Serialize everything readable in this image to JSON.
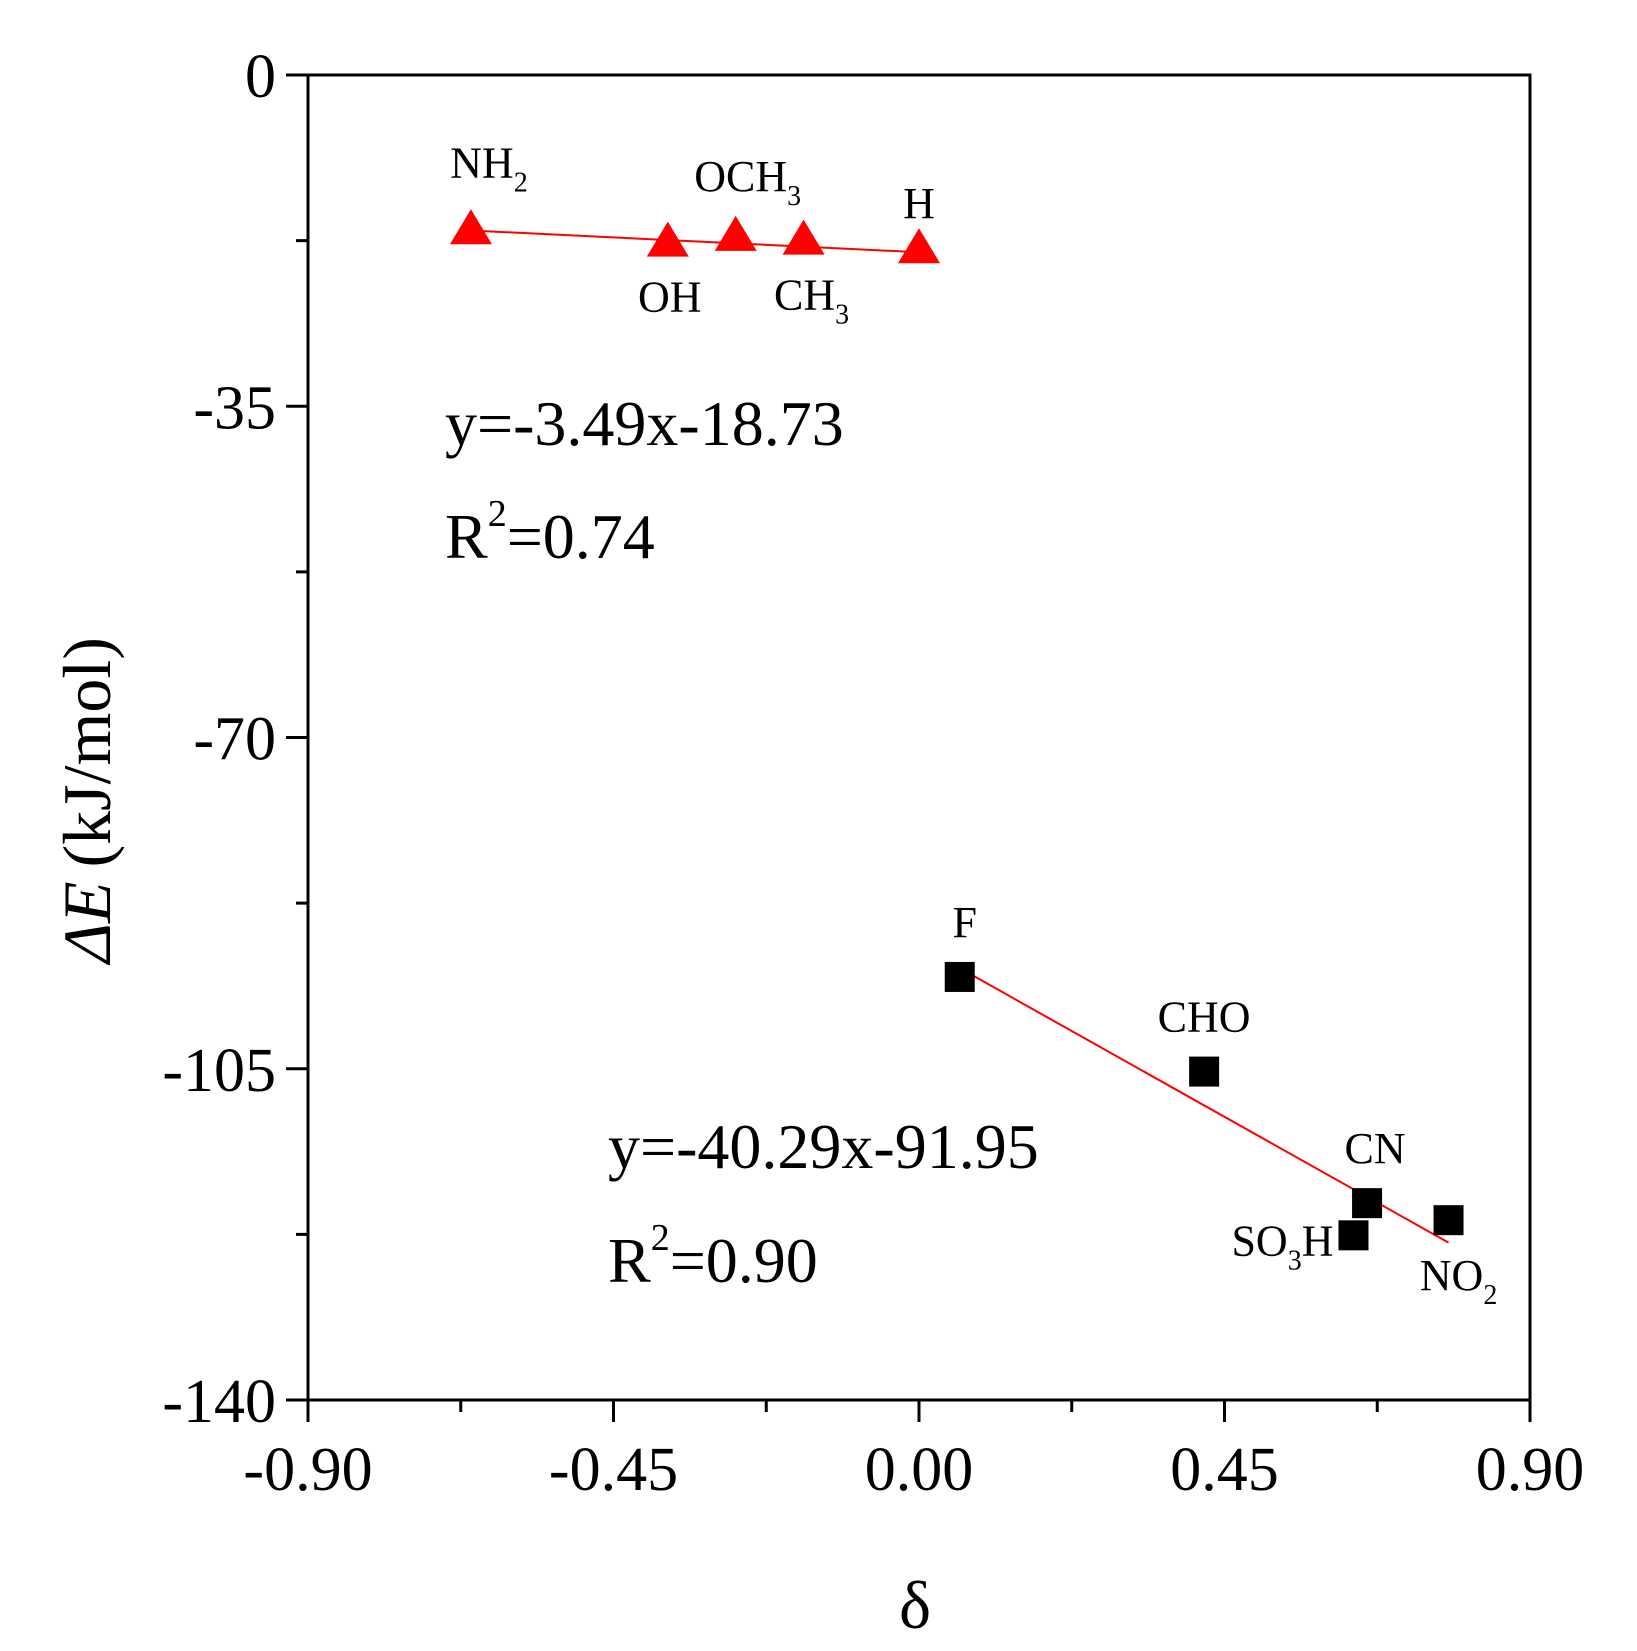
{
  "colors": {
    "triangle_series": "#ff0000",
    "square_series": "#000000",
    "fit_line": "#ff0000",
    "axes": "#000000"
  },
  "chart_data": {
    "type": "scatter",
    "xlabel": "δ",
    "ylabel_symbol": "ΔE",
    "ylabel_unit": "(kJ/mol)",
    "xlim": [
      -0.9,
      0.9
    ],
    "ylim": [
      -140,
      0
    ],
    "x_ticks": [
      -0.9,
      -0.45,
      0.0,
      0.45,
      0.9
    ],
    "x_tick_labels": [
      "-0.90",
      "-0.45",
      "0.00",
      "0.45",
      "0.90"
    ],
    "x_minor_ticks": [
      -0.675,
      -0.225,
      0.225,
      0.675
    ],
    "y_ticks": [
      0,
      -35,
      -70,
      -105,
      -140
    ],
    "y_tick_labels": [
      "0",
      "-35",
      "-70",
      "-105",
      "-140"
    ],
    "y_minor_ticks": [
      -17.5,
      -52.5,
      -87.5,
      -122.5
    ],
    "grid": false,
    "series": [
      {
        "marker": "triangle",
        "color": "#ff0000",
        "points": [
          {
            "label": "NH",
            "sub": "2",
            "x": -0.66,
            "y": -16.3
          },
          {
            "label": "OH",
            "sub": "",
            "x": -0.37,
            "y": -17.6
          },
          {
            "label": "OCH",
            "sub": "3",
            "x": -0.27,
            "y": -17.0
          },
          {
            "label": "CH",
            "sub": "3",
            "x": -0.17,
            "y": -17.4
          },
          {
            "label": "H",
            "sub": "",
            "x": 0.0,
            "y": -18.3
          }
        ],
        "fit": {
          "slope": -3.49,
          "intercept": -18.73,
          "x_range": [
            -0.66,
            0.0
          ]
        },
        "equation": "y=-3.49x-18.73",
        "r2_prefix": "R",
        "r2_sup": "2",
        "r2_value": "=0.74"
      },
      {
        "marker": "square",
        "color": "#000000",
        "points": [
          {
            "label": "F",
            "sub": "",
            "x": 0.06,
            "y": -95.3
          },
          {
            "label": "CHO",
            "sub": "",
            "x": 0.42,
            "y": -105.3
          },
          {
            "label": "CN",
            "sub": "",
            "x": 0.66,
            "y": -119.2
          },
          {
            "label": "SO",
            "sub": "3",
            "tail": "H",
            "x": 0.64,
            "y": -122.6
          },
          {
            "label": "NO",
            "sub": "2",
            "x": 0.78,
            "y": -121.0
          }
        ],
        "fit": {
          "slope": -40.29,
          "intercept": -91.95,
          "x_range": [
            0.06,
            0.78
          ]
        },
        "equation": "y=-40.29x-91.95",
        "r2_prefix": "R",
        "r2_sup": "2",
        "r2_value": "=0.90"
      }
    ]
  }
}
